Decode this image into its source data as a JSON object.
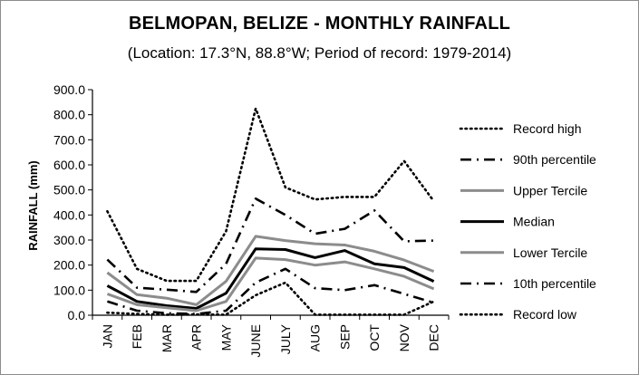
{
  "chart_data": {
    "type": "line",
    "title": "BELMOPAN, BELIZE - MONTHLY RAINFALL",
    "subtitle": "(Location: 17.3°N, 88.8°W; Period of record: 1979-2014)",
    "xlabel": "",
    "ylabel": "RAINFALL (mm)",
    "ylim": [
      0,
      900
    ],
    "ytick_step": 100,
    "ytick_labels": [
      "0.0",
      "100.0",
      "200.0",
      "300.0",
      "400.0",
      "500.0",
      "600.0",
      "700.0",
      "800.0",
      "900.0"
    ],
    "grid": false,
    "legend_position": "right",
    "categories": [
      "JAN",
      "FEB",
      "MAR",
      "APR",
      "MAY",
      "JUNE",
      "JULY",
      "AUG",
      "SEP",
      "OCT",
      "NOV",
      "DEC"
    ],
    "series": [
      {
        "name": "Record high",
        "style": "dotted",
        "color": "#000000",
        "values": [
          415,
          185,
          137,
          137,
          335,
          825,
          510,
          462,
          472,
          472,
          615,
          455
        ]
      },
      {
        "name": "90th percentile",
        "style": "dashdot",
        "color": "#000000",
        "values": [
          222,
          110,
          102,
          93,
          205,
          465,
          400,
          325,
          345,
          418,
          295,
          298
        ]
      },
      {
        "name": "Upper Tercile",
        "style": "solid",
        "color": "#8c8c8c",
        "values": [
          170,
          82,
          68,
          42,
          135,
          315,
          298,
          285,
          280,
          255,
          220,
          175
        ]
      },
      {
        "name": "Median",
        "style": "solid",
        "color": "#000000",
        "values": [
          118,
          55,
          38,
          27,
          88,
          265,
          262,
          230,
          258,
          205,
          190,
          135
        ]
      },
      {
        "name": "Lower Tercile",
        "style": "solid",
        "color": "#8c8c8c",
        "values": [
          85,
          42,
          30,
          18,
          55,
          228,
          222,
          200,
          213,
          185,
          155,
          105
        ]
      },
      {
        "name": "10th percentile",
        "style": "dashdot",
        "color": "#000000",
        "values": [
          55,
          18,
          8,
          5,
          18,
          130,
          185,
          108,
          100,
          120,
          85,
          50
        ]
      },
      {
        "name": "Record low",
        "style": "dotted",
        "color": "#000000",
        "values": [
          10,
          5,
          2,
          3,
          2,
          80,
          130,
          2,
          2,
          2,
          2,
          55
        ]
      }
    ]
  }
}
